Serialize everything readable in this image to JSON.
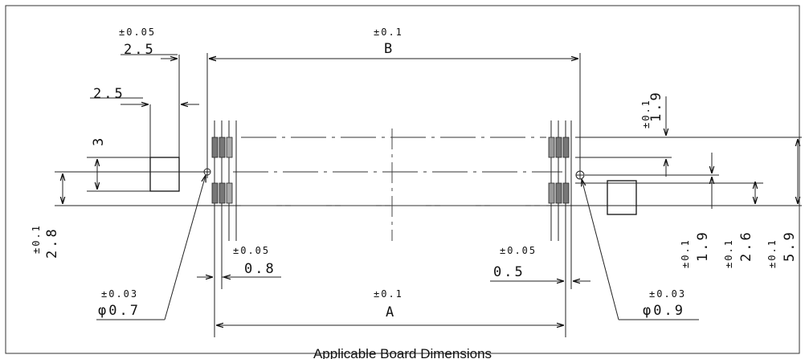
{
  "caption": "Applicable Board Dimensions",
  "dims": {
    "top_left_tol": "±0.05",
    "top_left_val": "2.5",
    "second_left_val": "2.5",
    "b_tol": "±0.1",
    "b_label": "B",
    "left_square_height": "3",
    "left_vertical_tol": "±0.1",
    "left_vertical_val": "2.8",
    "pitch_left_tol": "±0.05",
    "pitch_left_val": "0.8",
    "pitch_right_tol": "±0.05",
    "pitch_right_val": "0.5",
    "hole_left_tol": "±0.03",
    "hole_left_val": "φ0.7",
    "a_tol": "±0.1",
    "a_label": "A",
    "hole_right_tol": "±0.03",
    "hole_right_val": "φ0.9",
    "right_top_tol": "±0.1",
    "right_top_val": "1.9",
    "right_v1_tol": "±0.1",
    "right_v1_val": "1.9",
    "right_v2_tol": "±0.1",
    "right_v2_val": "2.6",
    "right_v3_tol": "±0.1",
    "right_v3_val": "5.9"
  }
}
